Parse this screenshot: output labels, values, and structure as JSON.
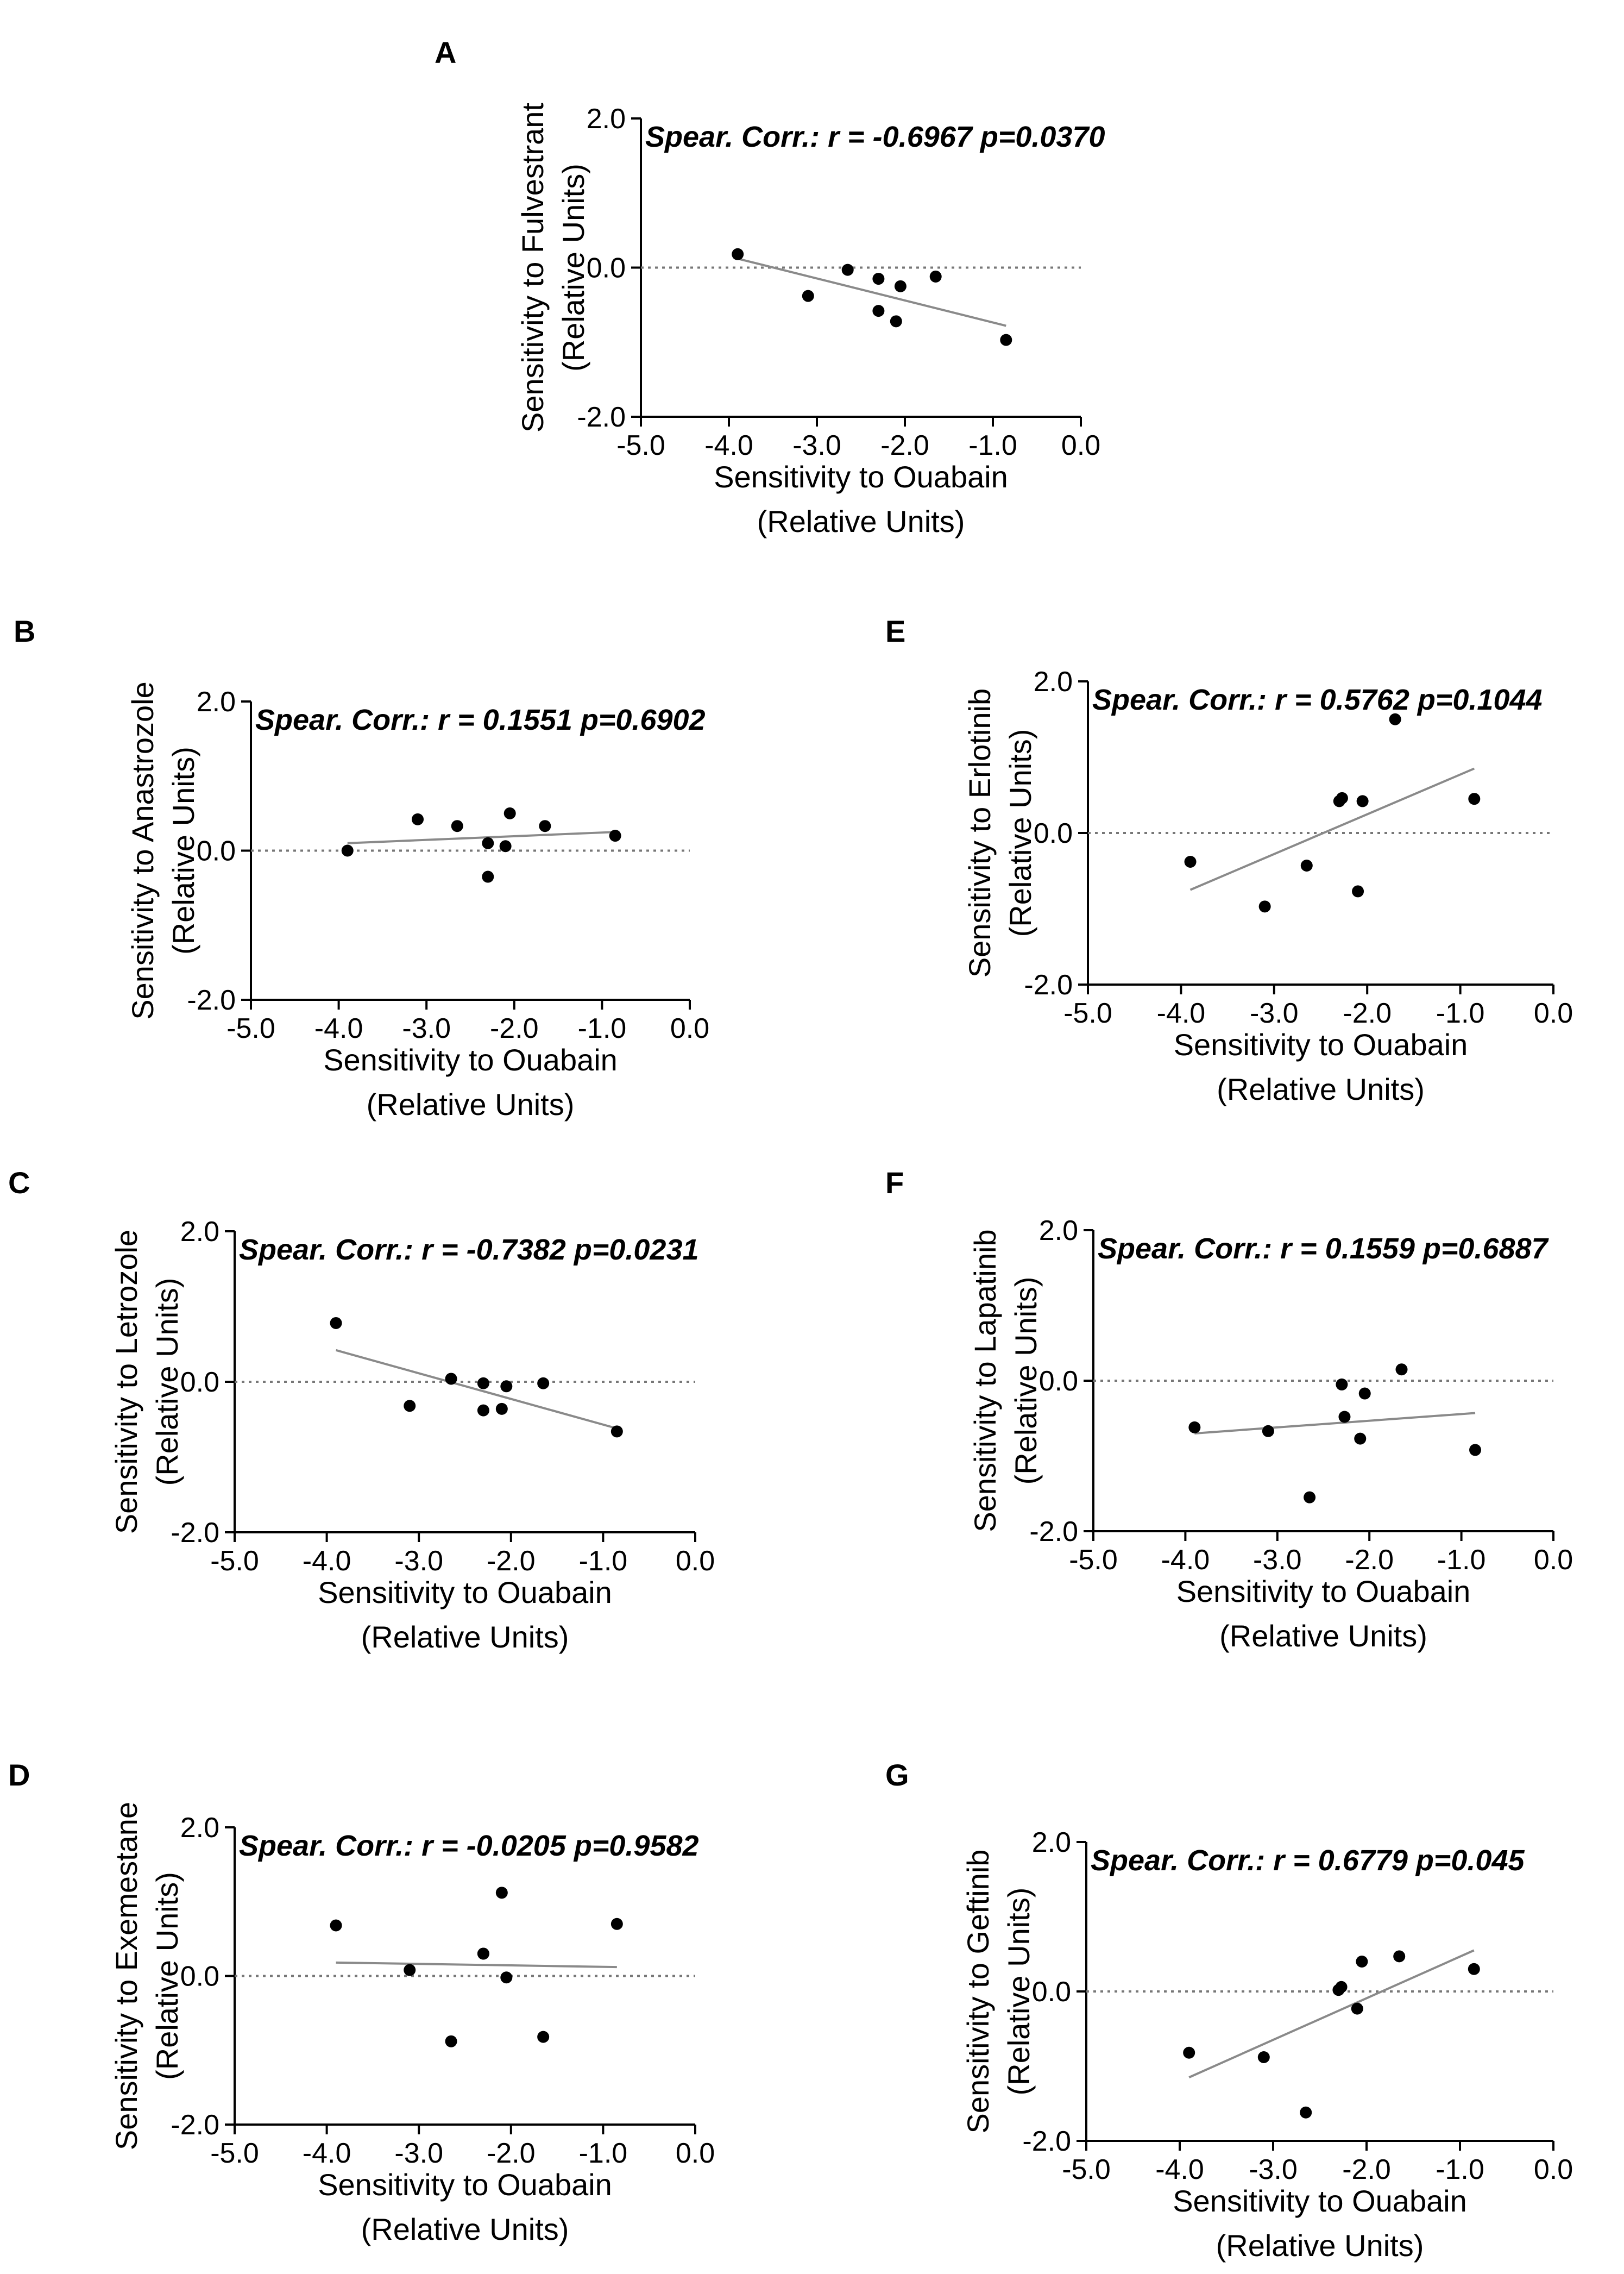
{
  "chart_data": [
    {
      "panel": "A",
      "type": "scatter",
      "ylabel": "Sensitivity to Fulvestrant",
      "ylabel_units": "(Relative  Units)",
      "xlabel": "Sensitivity to Ouabain",
      "xlabel_units": "(Relative  Units)",
      "annotation": "Spear. Corr.: r = -0.6967 p=0.0370",
      "xlim": [
        -5.0,
        0.0
      ],
      "ylim": [
        -2.0,
        2.0
      ],
      "xticks": [
        "-5.0",
        "-4.0",
        "-3.0",
        "-2.0",
        "-1.0",
        "0.0"
      ],
      "yticks": [
        "2.0",
        "0.0",
        "-2.0"
      ],
      "points": [
        [
          -3.9,
          0.18
        ],
        [
          -3.1,
          -0.38
        ],
        [
          -2.65,
          -0.03
        ],
        [
          -2.3,
          -0.15
        ],
        [
          -2.3,
          -0.58
        ],
        [
          -2.1,
          -0.72
        ],
        [
          -2.05,
          -0.25
        ],
        [
          -1.65,
          -0.12
        ],
        [
          -0.85,
          -0.97
        ]
      ],
      "fit": [
        [
          -3.9,
          0.12
        ],
        [
          -0.85,
          -0.78
        ]
      ]
    },
    {
      "panel": "B",
      "type": "scatter",
      "ylabel": "Sensitivity to Anastrozole",
      "ylabel_units": "(Relative  Units)",
      "xlabel": "Sensitivity to Ouabain",
      "xlabel_units": "(Relative  Units)",
      "annotation": "Spear. Corr.: r = 0.1551 p=0.6902",
      "xlim": [
        -5.0,
        0.0
      ],
      "ylim": [
        -2.0,
        2.0
      ],
      "xticks": [
        "-5.0",
        "-4.0",
        "-3.0",
        "-2.0",
        "-1.0",
        "0.0"
      ],
      "yticks": [
        "2.0",
        "0.0",
        "-2.0"
      ],
      "points": [
        [
          -3.9,
          0.0
        ],
        [
          -3.1,
          0.42
        ],
        [
          -2.65,
          0.33
        ],
        [
          -2.3,
          0.1
        ],
        [
          -2.3,
          -0.35
        ],
        [
          -2.1,
          0.06
        ],
        [
          -2.05,
          0.5
        ],
        [
          -1.65,
          0.33
        ],
        [
          -0.85,
          0.2
        ]
      ],
      "fit": [
        [
          -3.9,
          0.1
        ],
        [
          -0.85,
          0.25
        ]
      ]
    },
    {
      "panel": "C",
      "type": "scatter",
      "ylabel": "Sensitivity to Letrozole",
      "ylabel_units": "(Relative  Units)",
      "xlabel": "Sensitivity to Ouabain",
      "xlabel_units": "(Relative  Units)",
      "annotation": "Spear. Corr.: r = -0.7382 p=0.0231",
      "xlim": [
        -5.0,
        0.0
      ],
      "ylim": [
        -2.0,
        2.0
      ],
      "xticks": [
        "-5.0",
        "-4.0",
        "-3.0",
        "-2.0",
        "-1.0",
        "0.0"
      ],
      "yticks": [
        "2.0",
        "0.0",
        "-2.0"
      ],
      "points": [
        [
          -3.9,
          0.78
        ],
        [
          -3.1,
          -0.32
        ],
        [
          -2.65,
          0.04
        ],
        [
          -2.3,
          -0.02
        ],
        [
          -2.3,
          -0.38
        ],
        [
          -2.1,
          -0.36
        ],
        [
          -2.05,
          -0.06
        ],
        [
          -1.65,
          -0.02
        ],
        [
          -0.85,
          -0.66
        ]
      ],
      "fit": [
        [
          -3.9,
          0.42
        ],
        [
          -0.85,
          -0.62
        ]
      ]
    },
    {
      "panel": "D",
      "type": "scatter",
      "ylabel": "Sensitivity to Exemestane",
      "ylabel_units": "(Relative  Units)",
      "xlabel": "Sensitivity to Ouabain",
      "xlabel_units": "(Relative  Units)",
      "annotation": "Spear. Corr.: r = -0.0205 p=0.9582",
      "xlim": [
        -5.0,
        0.0
      ],
      "ylim": [
        -2.0,
        2.0
      ],
      "xticks": [
        "-5.0",
        "-4.0",
        "-3.0",
        "-2.0",
        "-1.0",
        "0.0"
      ],
      "yticks": [
        "2.0",
        "0.0",
        "-2.0"
      ],
      "points": [
        [
          -3.9,
          0.68
        ],
        [
          -3.1,
          0.08
        ],
        [
          -2.65,
          -0.88
        ],
        [
          -2.3,
          0.3
        ],
        [
          -2.3,
          0.3
        ],
        [
          -2.1,
          1.12
        ],
        [
          -2.05,
          -0.02
        ],
        [
          -1.65,
          -0.82
        ],
        [
          -0.85,
          0.7
        ]
      ],
      "fit": [
        [
          -3.9,
          0.18
        ],
        [
          -0.85,
          0.12
        ]
      ]
    },
    {
      "panel": "E",
      "type": "scatter",
      "ylabel": "Sensitivity to Erlotinib",
      "ylabel_units": "(Relative  Units)",
      "xlabel": "Sensitivity to Ouabain",
      "xlabel_units": "(Relative  Units)",
      "annotation": "Spear. Corr.: r = 0.5762 p=0.1044",
      "xlim": [
        -5.0,
        0.0
      ],
      "ylim": [
        -2.0,
        2.0
      ],
      "xticks": [
        "-5.0",
        "-4.0",
        "-3.0",
        "-2.0",
        "-1.0",
        "0.0"
      ],
      "yticks": [
        "2.0",
        "0.0",
        "-2.0"
      ],
      "points": [
        [
          -3.9,
          -0.38
        ],
        [
          -3.1,
          -0.97
        ],
        [
          -2.65,
          -0.43
        ],
        [
          -2.3,
          0.42
        ],
        [
          -2.27,
          0.46
        ],
        [
          -2.1,
          -0.77
        ],
        [
          -2.05,
          0.42
        ],
        [
          -1.7,
          1.5
        ],
        [
          -0.85,
          0.45
        ]
      ],
      "fit": [
        [
          -3.9,
          -0.75
        ],
        [
          -0.85,
          0.85
        ]
      ]
    },
    {
      "panel": "F",
      "type": "scatter",
      "ylabel": "Sensitivity to Lapatinib",
      "ylabel_units": "(Relative  Units)",
      "xlabel": "Sensitivity to Ouabain",
      "xlabel_units": "(Relative  Units)",
      "annotation": "Spear. Corr.: r = 0.1559 p=0.6887",
      "xlim": [
        -5.0,
        0.0
      ],
      "ylim": [
        -2.0,
        2.0
      ],
      "xticks": [
        "-5.0",
        "-4.0",
        "-3.0",
        "-2.0",
        "-1.0",
        "0.0"
      ],
      "yticks": [
        "2.0",
        "0.0",
        "-2.0"
      ],
      "points": [
        [
          -3.9,
          -0.62
        ],
        [
          -3.1,
          -0.67
        ],
        [
          -2.65,
          -1.55
        ],
        [
          -2.3,
          -0.05
        ],
        [
          -2.27,
          -0.48
        ],
        [
          -2.1,
          -0.77
        ],
        [
          -2.05,
          -0.17
        ],
        [
          -1.65,
          0.15
        ],
        [
          -0.85,
          -0.92
        ]
      ],
      "fit": [
        [
          -3.9,
          -0.7
        ],
        [
          -0.85,
          -0.43
        ]
      ]
    },
    {
      "panel": "G",
      "type": "scatter",
      "ylabel": "Sensitivity to Geftinib",
      "ylabel_units": "(Relative  Units)",
      "xlabel": "Sensitivity to Ouabain",
      "xlabel_units": "(Relative  Units)",
      "annotation": "Spear. Corr.: r = 0.6779 p=0.045",
      "xlim": [
        -5.0,
        0.0
      ],
      "ylim": [
        -2.0,
        2.0
      ],
      "xticks": [
        "-5.0",
        "-4.0",
        "-3.0",
        "-2.0",
        "-1.0",
        "0.0"
      ],
      "yticks": [
        "2.0",
        "0.0",
        "-2.0"
      ],
      "points": [
        [
          -3.9,
          -0.82
        ],
        [
          -3.1,
          -0.88
        ],
        [
          -2.65,
          -1.62
        ],
        [
          -2.3,
          0.02
        ],
        [
          -2.27,
          0.06
        ],
        [
          -2.1,
          -0.23
        ],
        [
          -2.05,
          0.4
        ],
        [
          -1.65,
          0.47
        ],
        [
          -0.85,
          0.3
        ]
      ],
      "fit": [
        [
          -3.9,
          -1.15
        ],
        [
          -0.85,
          0.55
        ]
      ]
    }
  ]
}
